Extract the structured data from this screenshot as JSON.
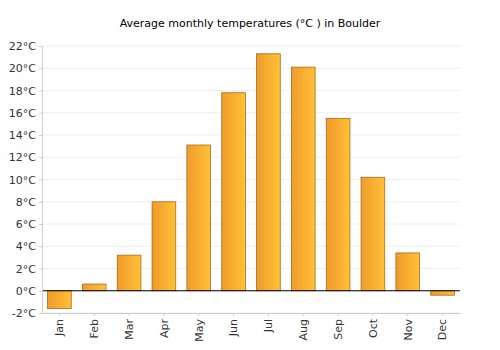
{
  "chart_data": {
    "type": "bar",
    "title": "Average monthly temperatures (°C ) in Boulder",
    "categories": [
      "Jan",
      "Feb",
      "Mar",
      "Apr",
      "May",
      "Jun",
      "Jul",
      "Aug",
      "Sep",
      "Oct",
      "Nov",
      "Dec"
    ],
    "values": [
      -1.6,
      0.6,
      3.2,
      8.0,
      13.1,
      17.8,
      21.3,
      20.1,
      15.5,
      10.2,
      3.4,
      -0.4
    ],
    "color": "#fca42e",
    "ylim": [
      -2,
      22
    ],
    "yticks": [
      {
        "value": -2,
        "label": "-2°C"
      },
      {
        "value": 0,
        "label": "0°C"
      },
      {
        "value": 2,
        "label": "2°C"
      },
      {
        "value": 4,
        "label": "4°C"
      },
      {
        "value": 6,
        "label": "6°C"
      },
      {
        "value": 8,
        "label": "8°C"
      },
      {
        "value": 10,
        "label": "10°C"
      },
      {
        "value": 12,
        "label": "12°C"
      },
      {
        "value": 14,
        "label": "14°C"
      },
      {
        "value": 16,
        "label": "16°C"
      },
      {
        "value": 18,
        "label": "18°C"
      },
      {
        "value": 20,
        "label": "20°C"
      },
      {
        "value": 22,
        "label": "22°C"
      }
    ],
    "grid": true
  }
}
